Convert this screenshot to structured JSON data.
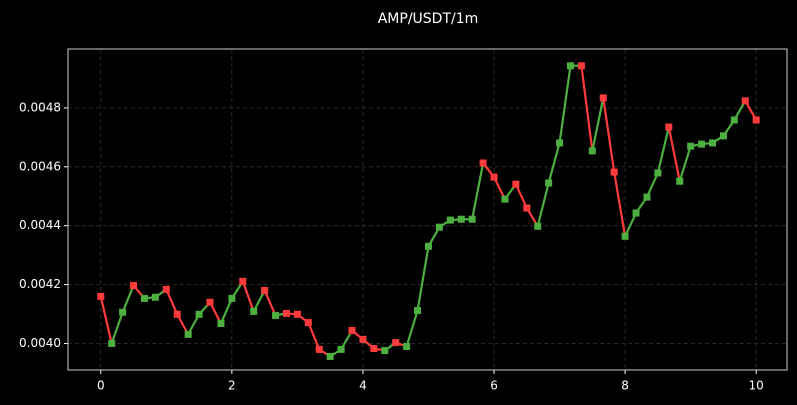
{
  "chart_data": {
    "type": "line",
    "title": "AMP/USDT/1m",
    "x": [
      0,
      0.1667,
      0.3333,
      0.5,
      0.6667,
      0.8333,
      1,
      1.1667,
      1.3333,
      1.5,
      1.6667,
      1.8333,
      2,
      2.1667,
      2.3333,
      2.5,
      2.6667,
      2.8333,
      3,
      3.1667,
      3.3333,
      3.5,
      3.6667,
      3.8333,
      4,
      4.1667,
      4.3333,
      4.5,
      4.6667,
      4.8333,
      5,
      5.1667,
      5.3333,
      5.5,
      5.6667,
      5.8333,
      6,
      6.1667,
      6.3333,
      6.5,
      6.6667,
      6.8333,
      7,
      7.1667,
      7.3333,
      7.5,
      7.6667,
      7.8333,
      8,
      8.1667,
      8.3333,
      8.5,
      8.6667,
      8.8333,
      9,
      9.1667,
      9.3333,
      9.5,
      9.6667,
      9.8333,
      10
    ],
    "values": [
      0.00416,
      0.004,
      0.004106,
      0.004197,
      0.004153,
      0.004157,
      0.004184,
      0.004099,
      0.004031,
      0.004099,
      0.00414,
      0.004068,
      0.004153,
      0.004211,
      0.004109,
      0.00418,
      0.004095,
      0.004102,
      0.004099,
      0.004071,
      0.00398,
      0.003956,
      0.00398,
      0.004044,
      0.004014,
      0.003983,
      0.003976,
      0.004003,
      0.00399,
      0.004112,
      0.00433,
      0.004395,
      0.004419,
      0.004422,
      0.004422,
      0.004613,
      0.004565,
      0.00449,
      0.004541,
      0.00446,
      0.004398,
      0.004545,
      0.004681,
      0.004943,
      0.004943,
      0.004654,
      0.004834,
      0.004582,
      0.004364,
      0.004443,
      0.004497,
      0.004579,
      0.004735,
      0.004551,
      0.00467,
      0.004677,
      0.004681,
      0.004705,
      0.004759,
      0.004824,
      0.004759
    ],
    "up_color": "#4caf3f",
    "down_color": "#ff3b3b",
    "xlim": [
      -0.5,
      10.47
    ],
    "xticks": [
      0,
      2,
      4,
      6,
      8,
      10
    ],
    "ylim": [
      0.00391,
      0.005
    ],
    "yticks": [
      {
        "value": 0.004,
        "label": "0.0040"
      },
      {
        "value": 0.0042,
        "label": "0.0042"
      },
      {
        "value": 0.0044,
        "label": "0.0044"
      },
      {
        "value": 0.0046,
        "label": "0.0046"
      },
      {
        "value": 0.0048,
        "label": "0.0048"
      }
    ],
    "grid": true
  }
}
